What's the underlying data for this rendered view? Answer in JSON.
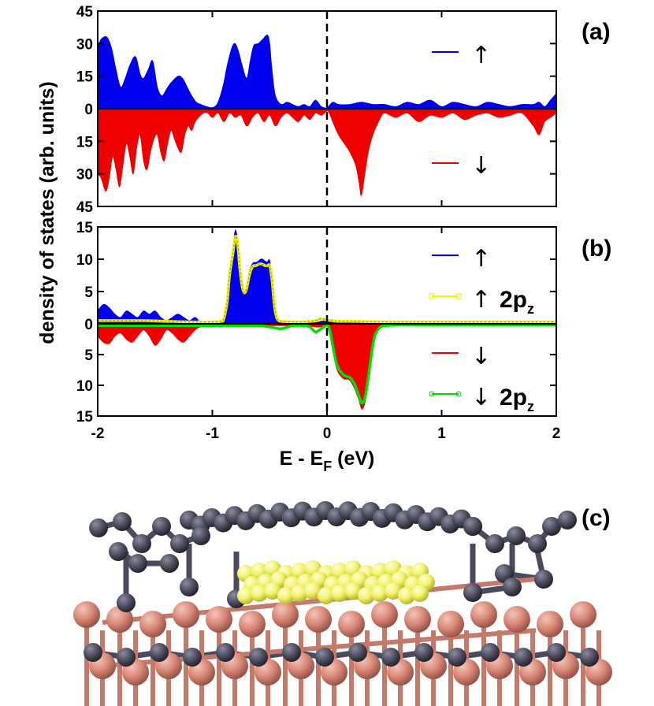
{
  "chart_data": [
    {
      "panel": "(a)",
      "type": "area",
      "ylabel": "density of states (arb. units)",
      "xlim": [
        -2,
        2
      ],
      "ylim": [
        -45,
        45
      ],
      "y_ticks": [
        45,
        30,
        15,
        0,
        15,
        30,
        45
      ],
      "fermi_line_x": 0,
      "legend": [
        {
          "symbol": "↑",
          "color": "#0000ee"
        },
        {
          "symbol": "↓",
          "color": "#ee0000"
        }
      ],
      "series": [
        {
          "spin": "up",
          "color": "#0000ee",
          "sign": 1,
          "x": [
            -2.0,
            -1.97,
            -1.92,
            -1.88,
            -1.84,
            -1.8,
            -1.76,
            -1.72,
            -1.67,
            -1.63,
            -1.6,
            -1.56,
            -1.52,
            -1.48,
            -1.44,
            -1.4,
            -1.36,
            -1.3,
            -1.26,
            -1.22,
            -1.18,
            -1.14,
            -1.1,
            -1.05,
            -1.0,
            -0.96,
            -0.93,
            -0.9,
            -0.87,
            -0.83,
            -0.8,
            -0.77,
            -0.74,
            -0.7,
            -0.67,
            -0.64,
            -0.6,
            -0.56,
            -0.52,
            -0.5,
            -0.48,
            -0.45,
            -0.4,
            -0.35,
            -0.3,
            -0.25,
            -0.2,
            -0.15,
            -0.1,
            -0.05,
            0.0,
            0.05,
            0.1,
            0.2,
            0.3,
            0.4,
            0.5,
            0.6,
            0.7,
            0.8,
            0.9,
            1.0,
            1.1,
            1.2,
            1.3,
            1.4,
            1.5,
            1.6,
            1.7,
            1.8,
            1.85,
            1.9,
            1.95,
            2.0
          ],
          "y": [
            28,
            32,
            33,
            28,
            18,
            10,
            14,
            20,
            24,
            16,
            14,
            18,
            22,
            10,
            6,
            9,
            12,
            15,
            14,
            10,
            6,
            3,
            2,
            1,
            0.5,
            2,
            6,
            12,
            20,
            28,
            30,
            26,
            20,
            14,
            22,
            29,
            30,
            32,
            34,
            30,
            18,
            6,
            2,
            3,
            2,
            1,
            2,
            1,
            4,
            1,
            0.5,
            3,
            2,
            2,
            3,
            2,
            2,
            1,
            3,
            2,
            4,
            1,
            3,
            2,
            1,
            3,
            2,
            1,
            2,
            2,
            3,
            1,
            4,
            7
          ]
        },
        {
          "spin": "down",
          "color": "#ee0000",
          "sign": -1,
          "x": [
            -2.0,
            -1.97,
            -1.93,
            -1.9,
            -1.87,
            -1.84,
            -1.81,
            -1.78,
            -1.75,
            -1.72,
            -1.69,
            -1.66,
            -1.63,
            -1.6,
            -1.57,
            -1.54,
            -1.51,
            -1.48,
            -1.45,
            -1.42,
            -1.39,
            -1.36,
            -1.33,
            -1.3,
            -1.27,
            -1.24,
            -1.21,
            -1.18,
            -1.15,
            -1.12,
            -1.08,
            -1.04,
            -1.0,
            -0.95,
            -0.9,
            -0.85,
            -0.8,
            -0.75,
            -0.7,
            -0.65,
            -0.6,
            -0.55,
            -0.5,
            -0.45,
            -0.4,
            -0.35,
            -0.3,
            -0.25,
            -0.2,
            -0.15,
            -0.1,
            -0.05,
            0.0,
            0.02,
            0.05,
            0.1,
            0.15,
            0.2,
            0.25,
            0.28,
            0.3,
            0.33,
            0.36,
            0.4,
            0.45,
            0.5,
            0.6,
            0.7,
            0.8,
            0.9,
            1.0,
            1.1,
            1.2,
            1.3,
            1.4,
            1.5,
            1.6,
            1.7,
            1.8,
            1.85,
            1.9,
            1.95,
            2.0
          ],
          "y": [
            30,
            32,
            38,
            32,
            22,
            28,
            36,
            26,
            16,
            22,
            30,
            18,
            12,
            24,
            28,
            20,
            14,
            12,
            20,
            24,
            16,
            10,
            14,
            18,
            20,
            12,
            8,
            10,
            6,
            4,
            2,
            2,
            4,
            2,
            6,
            2,
            4,
            3,
            8,
            4,
            2,
            6,
            3,
            8,
            4,
            2,
            4,
            6,
            3,
            5,
            2,
            3,
            1,
            2,
            6,
            12,
            16,
            20,
            26,
            34,
            40,
            30,
            20,
            12,
            6,
            2,
            4,
            2,
            6,
            3,
            4,
            2,
            5,
            3,
            2,
            4,
            3,
            2,
            8,
            12,
            6,
            4,
            2
          ]
        }
      ]
    },
    {
      "panel": "(b)",
      "type": "area",
      "xlabel": "E - E",
      "xlabel_sub": "F",
      "xlabel_unit": " (eV)",
      "xlim": [
        -2,
        2
      ],
      "ylim": [
        -15,
        15
      ],
      "x_ticks": [
        -2,
        -1,
        0,
        1,
        2
      ],
      "y_ticks": [
        15,
        10,
        5,
        0,
        5,
        10,
        15
      ],
      "fermi_line_x": 0,
      "legend": [
        {
          "symbol": "↑",
          "label": "",
          "color": "#0000ee"
        },
        {
          "symbol": "↑",
          "label": "2p",
          "label_sub": "z",
          "color": "#f0f000"
        },
        {
          "symbol": "↓",
          "label": "",
          "color": "#ee0000"
        },
        {
          "symbol": "↓",
          "label": "2p",
          "label_sub": "z",
          "color": "#00e000"
        }
      ],
      "series": [
        {
          "spin": "up",
          "color": "#0000ee",
          "sign": 1,
          "kind": "area",
          "x": [
            -2.0,
            -1.95,
            -1.9,
            -1.85,
            -1.8,
            -1.75,
            -1.7,
            -1.65,
            -1.6,
            -1.55,
            -1.5,
            -1.45,
            -1.4,
            -1.35,
            -1.3,
            -1.25,
            -1.2,
            -1.15,
            -1.1,
            -1.0,
            -0.92,
            -0.9,
            -0.87,
            -0.85,
            -0.82,
            -0.8,
            -0.78,
            -0.76,
            -0.74,
            -0.72,
            -0.7,
            -0.68,
            -0.66,
            -0.64,
            -0.62,
            -0.6,
            -0.58,
            -0.56,
            -0.54,
            -0.52,
            -0.5,
            -0.48,
            -0.46,
            -0.44,
            -0.42,
            -0.4,
            -0.3,
            -0.2,
            -0.1,
            -0.05,
            0.0,
            0.1,
            0.2,
            0.3,
            0.5,
            0.8,
            1.0,
            1.5,
            2.0
          ],
          "y": [
            2,
            3,
            2.5,
            1.5,
            1,
            2,
            1.5,
            1,
            2,
            1.5,
            2,
            1,
            0.5,
            1,
            1.5,
            1,
            0.5,
            1,
            0.3,
            0.3,
            0.5,
            1,
            4,
            8,
            12,
            14.5,
            13,
            9,
            6,
            5,
            6,
            8,
            9,
            9.5,
            9.5,
            9.7,
            10,
            10,
            9.7,
            9.6,
            9.8,
            7,
            3,
            1,
            0.5,
            0.3,
            0.3,
            0.2,
            0.2,
            0.4,
            0.5,
            0.2,
            0.2,
            0.3,
            0.2,
            0.2,
            0.2,
            0.2,
            0.2
          ]
        },
        {
          "spin": "up 2pz",
          "color": "#f0f000",
          "sign": 1,
          "kind": "line",
          "x": [
            -2.0,
            -1.8,
            -1.6,
            -1.4,
            -1.2,
            -1.0,
            -0.92,
            -0.9,
            -0.87,
            -0.85,
            -0.82,
            -0.8,
            -0.78,
            -0.76,
            -0.74,
            -0.72,
            -0.7,
            -0.68,
            -0.66,
            -0.64,
            -0.62,
            -0.6,
            -0.58,
            -0.56,
            -0.54,
            -0.52,
            -0.5,
            -0.48,
            -0.46,
            -0.44,
            -0.42,
            -0.4,
            -0.3,
            -0.2,
            -0.1,
            -0.05,
            0.0,
            0.1,
            0.2,
            0.5,
            1.0,
            1.5,
            2.0
          ],
          "y": [
            0.5,
            0.5,
            0.5,
            0.4,
            0.3,
            0.3,
            0.4,
            0.8,
            3.5,
            7.5,
            11,
            13.5,
            12.5,
            8.5,
            5.8,
            4.8,
            5.5,
            7.3,
            8.5,
            9,
            9,
            9.2,
            9.3,
            9.2,
            9,
            9,
            9,
            6.8,
            3,
            1,
            0.5,
            0.4,
            0.3,
            0.3,
            0.5,
            0.8,
            0.6,
            0.4,
            0.4,
            0.3,
            0.3,
            0.3,
            0.3
          ]
        },
        {
          "spin": "down",
          "color": "#ee0000",
          "sign": -1,
          "kind": "area",
          "x": [
            -2.0,
            -1.95,
            -1.9,
            -1.85,
            -1.8,
            -1.75,
            -1.7,
            -1.65,
            -1.6,
            -1.55,
            -1.5,
            -1.45,
            -1.4,
            -1.35,
            -1.3,
            -1.25,
            -1.2,
            -1.15,
            -1.1,
            -1.0,
            -0.9,
            -0.8,
            -0.6,
            -0.5,
            -0.4,
            -0.3,
            -0.2,
            -0.1,
            -0.05,
            0.0,
            0.02,
            0.04,
            0.06,
            0.08,
            0.1,
            0.12,
            0.15,
            0.18,
            0.2,
            0.22,
            0.24,
            0.26,
            0.28,
            0.3,
            0.32,
            0.34,
            0.36,
            0.38,
            0.4,
            0.42,
            0.45,
            0.48,
            0.5,
            0.6,
            0.8,
            1.0,
            1.5,
            2.0
          ],
          "y": [
            2,
            3,
            3.2,
            2,
            1.5,
            2.5,
            3,
            2,
            1,
            2,
            3.5,
            2.5,
            1,
            1.5,
            2.5,
            3,
            2,
            1,
            0.5,
            0.5,
            0.3,
            0.3,
            0.3,
            0.3,
            0.3,
            0.3,
            0.3,
            0.5,
            0.5,
            0.2,
            1,
            3,
            5,
            7,
            8,
            8.5,
            9,
            9,
            9.2,
            9.8,
            10.5,
            11.5,
            12.5,
            13.8,
            13.5,
            12,
            9.5,
            6.5,
            4,
            2,
            1,
            0.5,
            0.3,
            0.2,
            0.2,
            0.2,
            0.2,
            0.2
          ]
        },
        {
          "spin": "down 2pz",
          "color": "#00e000",
          "sign": -1,
          "kind": "line",
          "x": [
            -2.0,
            -1.5,
            -1.0,
            -0.8,
            -0.6,
            -0.5,
            -0.4,
            -0.3,
            -0.2,
            -0.15,
            -0.1,
            -0.05,
            0.0,
            0.02,
            0.04,
            0.06,
            0.08,
            0.1,
            0.12,
            0.15,
            0.18,
            0.2,
            0.22,
            0.24,
            0.26,
            0.28,
            0.3,
            0.32,
            0.34,
            0.36,
            0.38,
            0.4,
            0.42,
            0.45,
            0.48,
            0.5,
            0.6,
            0.8,
            1.0,
            1.5,
            2.0
          ],
          "y": [
            0.3,
            0.3,
            0.3,
            0.3,
            0.3,
            0.5,
            0.8,
            0.3,
            0.3,
            0.5,
            1.3,
            0.8,
            0.2,
            0.8,
            2.5,
            4.5,
            6.3,
            7.3,
            7.8,
            8.4,
            8.6,
            8.7,
            9.2,
            9.8,
            10.8,
            11.8,
            12.8,
            12.6,
            11.2,
            8.8,
            6,
            3.5,
            1.8,
            0.8,
            0.4,
            0.3,
            0.2,
            0.2,
            0.2,
            0.2,
            0.2
          ]
        }
      ]
    }
  ],
  "structure_panel": {
    "label": "(c)",
    "top_layer_color": "#4a4a5c",
    "highlight_color": "#f2f26a",
    "substrate_color": "#d98877"
  }
}
